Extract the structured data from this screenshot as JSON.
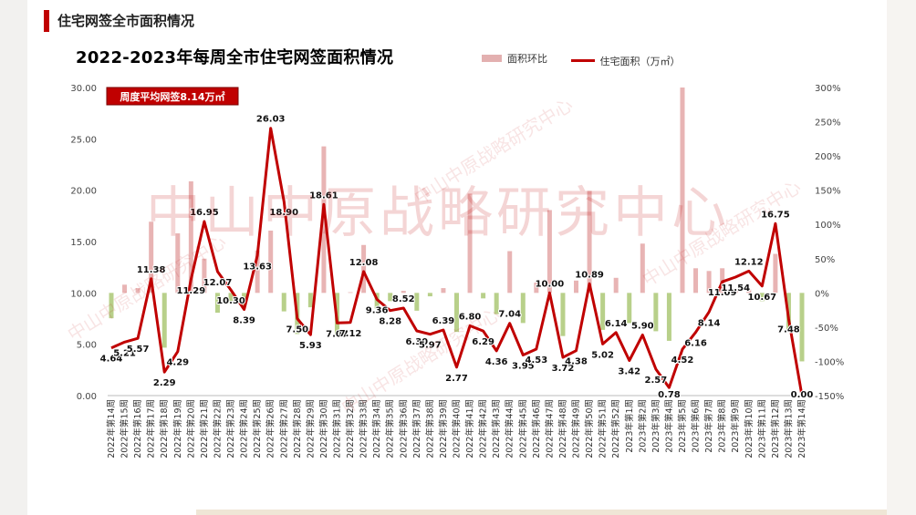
{
  "header": {
    "title": "住宅网签全市面积情况"
  },
  "chart_title": "2022-2023年每周全市住宅网签面积情况",
  "legend": {
    "bar_label": "面积环比",
    "line_label": "住宅面积（万㎡）"
  },
  "avg_badge": "周度平均网签8.14万㎡",
  "watermark": "中山中原战略研究中心",
  "colors": {
    "line": "#c00000",
    "bar_pos": "#e8b4b4",
    "bar_neg": "#b8d08a",
    "badge_bg": "#c00000"
  },
  "chart_data": {
    "type": "bar+line",
    "title": "2022-2023年每周全市住宅网签面积情况",
    "categories": [
      "2022年第14周",
      "2022年第15周",
      "2022年第16周",
      "2022年第17周",
      "2022年第18周",
      "2022年第19周",
      "2022年第20周",
      "2022年第21周",
      "2022年第22周",
      "2022年第23周",
      "2022年第24周",
      "2022年第25周",
      "2022年第26周",
      "2022年第27周",
      "2022年第28周",
      "2022年第29周",
      "2022年第30周",
      "2022年第31周",
      "2022年第32周",
      "2022年第33周",
      "2022年第34周",
      "2022年第35周",
      "2022年第36周",
      "2022年第37周",
      "2022年第38周",
      "2022年第39周",
      "2022年第40周",
      "2022年第41周",
      "2022年第42周",
      "2022年第43周",
      "2022年第44周",
      "2022年第45周",
      "2022年第46周",
      "2022年第47周",
      "2022年第48周",
      "2022年第49周",
      "2022年第50周",
      "2022年第51周",
      "2022年第52周",
      "2023年第1周",
      "2023年第2周",
      "2023年第3周",
      "2023年第4周",
      "2023年第5周",
      "2023年第6周",
      "2023年第7周",
      "2023年第8周",
      "2023年第9周",
      "2023年第10周",
      "2023年第11周",
      "2023年第12周",
      "2023年第13周",
      "2023年第14周"
    ],
    "line": {
      "name": "住宅面积（万㎡）",
      "values": [
        4.64,
        5.21,
        5.57,
        11.38,
        2.29,
        4.29,
        11.29,
        16.95,
        12.07,
        10.3,
        8.39,
        13.63,
        26.03,
        18.9,
        7.5,
        5.93,
        18.61,
        7.07,
        7.12,
        12.08,
        9.36,
        8.28,
        8.52,
        6.3,
        5.97,
        6.39,
        2.77,
        6.8,
        6.29,
        4.36,
        7.04,
        3.95,
        4.53,
        10.0,
        3.72,
        4.38,
        10.89,
        5.02,
        6.14,
        3.42,
        5.9,
        2.57,
        0.78,
        4.52,
        6.16,
        8.14,
        11.09,
        11.54,
        12.12,
        10.67,
        16.75,
        7.48,
        0.0
      ]
    },
    "bar": {
      "name": "面积环比",
      "values": [
        -37,
        12,
        7,
        104,
        -80,
        87,
        163,
        50,
        -29,
        -15,
        -19,
        62,
        91,
        -27,
        -60,
        -21,
        214,
        -62,
        1,
        70,
        -23,
        -12,
        3,
        -26,
        -5,
        7,
        -57,
        145,
        -8,
        -31,
        61,
        -44,
        15,
        121,
        -63,
        18,
        149,
        -54,
        22,
        -44,
        72,
        -56,
        -70,
        480,
        36,
        32,
        36,
        4,
        5,
        -12,
        57,
        -55,
        -100
      ]
    },
    "y_left": {
      "min": 0,
      "max": 30,
      "ticks": [
        "0.00",
        "5.00",
        "10.00",
        "15.00",
        "20.00",
        "25.00",
        "30.00"
      ]
    },
    "y_right": {
      "min": -150,
      "max": 300,
      "ticks": [
        "-150%",
        "-100%",
        "-50%",
        "0%",
        "50%",
        "100%",
        "150%",
        "200%",
        "250%",
        "300%"
      ]
    },
    "grid": false,
    "legend_position": "top-right"
  }
}
